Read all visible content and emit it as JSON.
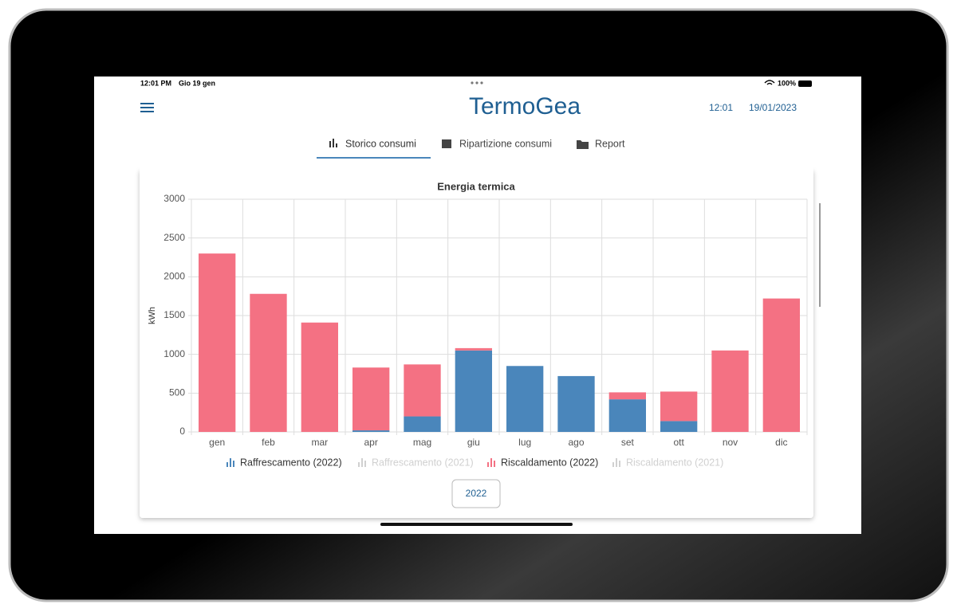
{
  "status_bar": {
    "time": "12:01 PM",
    "date": "Gio 19 gen",
    "battery": "100%"
  },
  "header": {
    "logo": "TermoGea",
    "time": "12:01",
    "date": "19/01/2023"
  },
  "tabs": [
    "Storico consumi",
    "Ripartizione consumi",
    "Report"
  ],
  "year_button": "2022",
  "chart_data": {
    "type": "stacked_bar",
    "title": "Energia termica",
    "y_label": "kWh",
    "categories": [
      "gen",
      "feb",
      "mar",
      "apr",
      "mag",
      "giu",
      "lug",
      "ago",
      "set",
      "ott",
      "nov",
      "dic"
    ],
    "series": [
      {
        "name": "Raffrescamento (2022)",
        "color": "#4a86bb",
        "values": [
          0,
          0,
          0,
          20,
          200,
          1050,
          850,
          720,
          420,
          140,
          0,
          0
        ]
      },
      {
        "name": "Raffrescamento (2021)",
        "color": "#d0d0d0",
        "hidden": true
      },
      {
        "name": "Riscaldamento (2022)",
        "color": "#f47183",
        "values": [
          2300,
          1780,
          1410,
          810,
          670,
          30,
          0,
          0,
          90,
          380,
          1050,
          1720
        ]
      },
      {
        "name": "Riscaldamento (2021)",
        "color": "#d0d0d0",
        "hidden": true
      }
    ],
    "ylim": [
      0,
      3000
    ],
    "yticks": [
      0,
      500,
      1000,
      1500,
      2000,
      2500,
      3000
    ],
    "grid": true
  }
}
